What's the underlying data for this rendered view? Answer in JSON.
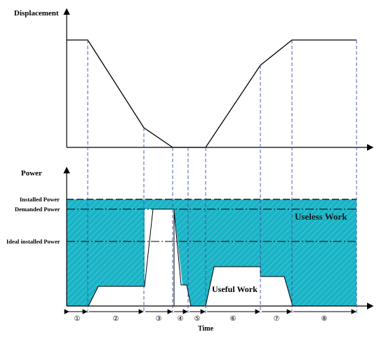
{
  "labels": {
    "displacement_axis": "Displacement",
    "power_axis": "Power",
    "time_axis": "Time",
    "installed_power": "Installed Power",
    "demanded_power": "Demanded Power",
    "ideal_installed_power": "Ideal installed Power",
    "useless_work": "Useless Work",
    "useful_work": "Useful Work"
  },
  "phases": [
    "①",
    "②",
    "③",
    "④",
    "⑤",
    "⑥",
    "⑦",
    "⑧"
  ],
  "colors": {
    "fill": "#1ab3c6",
    "hatch": "#5fcfdc",
    "line": "#000000",
    "guide": "#3a4fa8"
  }
}
